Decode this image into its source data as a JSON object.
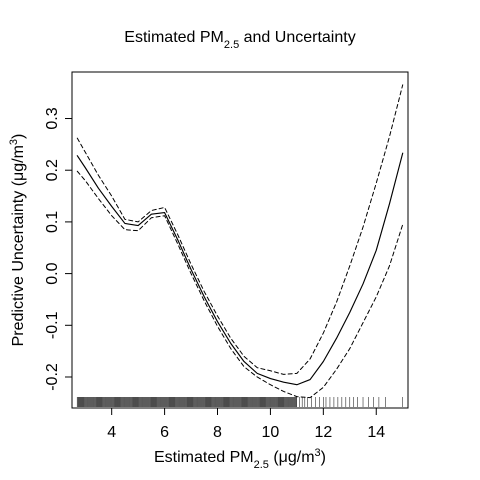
{
  "chart_data": {
    "type": "line",
    "title": {
      "prefix": "Estimated PM",
      "subscript": "2.5",
      "suffix": "  and Uncertainty"
    },
    "xlabel": {
      "prefix": "Estimated PM",
      "subscript": "2.5",
      "middle": " (μg/m",
      "superscript": "3",
      "suffix": ")"
    },
    "ylabel": {
      "prefix": "Predictive Uncertainty (μg/m",
      "superscript": "3",
      "suffix": ")"
    },
    "xlim": [
      2.5,
      15.2
    ],
    "ylim": [
      -0.26,
      0.39
    ],
    "x_ticks": [
      {
        "value": 4,
        "label": "4"
      },
      {
        "value": 6,
        "label": "6"
      },
      {
        "value": 8,
        "label": "8"
      },
      {
        "value": 10,
        "label": "10"
      },
      {
        "value": 12,
        "label": "12"
      },
      {
        "value": 14,
        "label": "14"
      }
    ],
    "y_ticks": [
      {
        "value": -0.2,
        "label": "-0.2"
      },
      {
        "value": -0.1,
        "label": "-0.1"
      },
      {
        "value": 0.0,
        "label": "0.0"
      },
      {
        "value": 0.1,
        "label": "0.1"
      },
      {
        "value": 0.2,
        "label": "0.2"
      },
      {
        "value": 0.3,
        "label": "0.3"
      }
    ],
    "grid": false,
    "series": [
      {
        "role": "estimate",
        "style": "solid",
        "color": "#000000",
        "x": [
          2.7,
          3.0,
          3.5,
          4.0,
          4.5,
          5.0,
          5.5,
          6.0,
          6.5,
          7.0,
          7.5,
          8.0,
          8.5,
          9.0,
          9.5,
          10.0,
          10.5,
          11.0,
          11.5,
          12.0,
          12.5,
          13.0,
          13.5,
          14.0,
          14.5,
          15.0
        ],
        "y": [
          0.228,
          0.205,
          0.165,
          0.13,
          0.097,
          0.093,
          0.115,
          0.118,
          0.065,
          0.008,
          -0.045,
          -0.093,
          -0.135,
          -0.17,
          -0.193,
          -0.203,
          -0.21,
          -0.215,
          -0.205,
          -0.17,
          -0.125,
          -0.075,
          -0.02,
          0.045,
          0.135,
          0.233
        ]
      },
      {
        "role": "upper-bound",
        "style": "dashed",
        "color": "#000000",
        "x": [
          2.7,
          3.0,
          3.5,
          4.0,
          4.5,
          5.0,
          5.5,
          6.0,
          6.5,
          7.0,
          7.5,
          8.0,
          8.5,
          9.0,
          9.5,
          10.0,
          10.5,
          11.0,
          11.5,
          12.0,
          12.5,
          13.0,
          13.5,
          14.0,
          14.5,
          15.0
        ],
        "y": [
          0.262,
          0.235,
          0.19,
          0.15,
          0.105,
          0.1,
          0.122,
          0.128,
          0.075,
          0.018,
          -0.035,
          -0.082,
          -0.125,
          -0.16,
          -0.182,
          -0.188,
          -0.195,
          -0.193,
          -0.165,
          -0.115,
          -0.055,
          0.015,
          0.09,
          0.175,
          0.265,
          0.365
        ]
      },
      {
        "role": "lower-bound",
        "style": "dashed",
        "color": "#000000",
        "x": [
          2.7,
          3.0,
          3.5,
          4.0,
          4.5,
          5.0,
          5.5,
          6.0,
          6.5,
          7.0,
          7.5,
          8.0,
          8.5,
          9.0,
          9.5,
          10.0,
          10.5,
          11.0,
          11.5,
          12.0,
          12.5,
          13.0,
          13.5,
          14.0,
          14.5,
          15.0
        ],
        "y": [
          0.198,
          0.18,
          0.145,
          0.112,
          0.085,
          0.083,
          0.108,
          0.112,
          0.057,
          0.0,
          -0.053,
          -0.102,
          -0.145,
          -0.18,
          -0.2,
          -0.215,
          -0.228,
          -0.238,
          -0.24,
          -0.22,
          -0.185,
          -0.145,
          -0.095,
          -0.045,
          0.015,
          0.095
        ]
      }
    ],
    "rug": {
      "style": "vertical ticks along bottom of plot area",
      "dense_from": 2.7,
      "dense_to": 11.0,
      "sparse_values": [
        11.1,
        11.2,
        11.3,
        11.4,
        11.55,
        11.7,
        11.85,
        12.0,
        12.1,
        12.25,
        12.4,
        12.55,
        12.7,
        12.85,
        13.0,
        13.15,
        13.3,
        13.5,
        13.7,
        13.9,
        14.1,
        14.35,
        15.0
      ]
    }
  }
}
